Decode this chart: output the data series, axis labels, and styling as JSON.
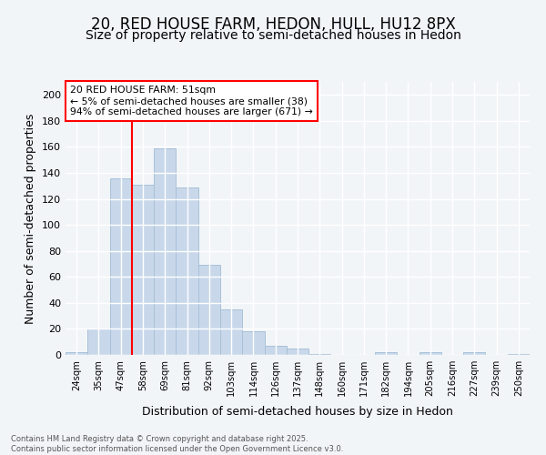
{
  "title1": "20, RED HOUSE FARM, HEDON, HULL, HU12 8PX",
  "title2": "Size of property relative to semi-detached houses in Hedon",
  "xlabel": "Distribution of semi-detached houses by size in Hedon",
  "ylabel": "Number of semi-detached properties",
  "categories": [
    "24sqm",
    "35sqm",
    "47sqm",
    "58sqm",
    "69sqm",
    "81sqm",
    "92sqm",
    "103sqm",
    "114sqm",
    "126sqm",
    "137sqm",
    "148sqm",
    "160sqm",
    "171sqm",
    "182sqm",
    "194sqm",
    "205sqm",
    "216sqm",
    "227sqm",
    "239sqm",
    "250sqm"
  ],
  "values": [
    2,
    20,
    136,
    131,
    159,
    129,
    69,
    35,
    18,
    7,
    5,
    1,
    0,
    0,
    2,
    0,
    2,
    0,
    2,
    0,
    1
  ],
  "bar_color": "#c8d8ea",
  "bar_edge_color": "#a8c0d8",
  "red_line_x": 2.5,
  "red_line_label": "20 RED HOUSE FARM: 51sqm",
  "annotation_line1": "← 5% of semi-detached houses are smaller (38)",
  "annotation_line2": "94% of semi-detached houses are larger (671) →",
  "ylim": [
    0,
    210
  ],
  "yticks": [
    0,
    20,
    40,
    60,
    80,
    100,
    120,
    140,
    160,
    180,
    200
  ],
  "footer1": "Contains HM Land Registry data © Crown copyright and database right 2025.",
  "footer2": "Contains public sector information licensed under the Open Government Licence v3.0.",
  "bg_color": "#f2f5f8",
  "grid_color": "#ffffff",
  "title1_fontsize": 12,
  "title2_fontsize": 10,
  "xlabel_fontsize": 9,
  "ylabel_fontsize": 9
}
